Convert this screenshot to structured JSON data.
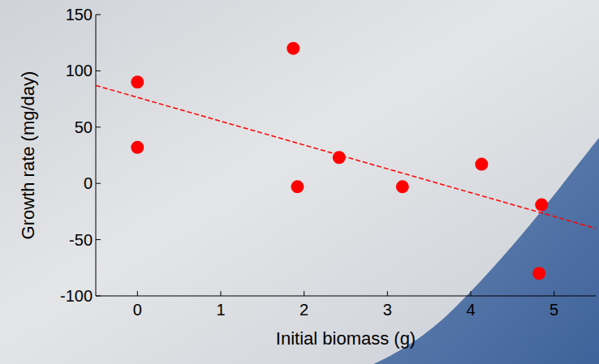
{
  "chart_data": {
    "type": "scatter",
    "x_label": "Initial biomass (g)",
    "y_label": "Growth rate (mg/day)",
    "xlim": [
      -0.5,
      5.5
    ],
    "ylim": [
      -100,
      150
    ],
    "xticks": [
      0,
      1,
      2,
      3,
      4,
      5
    ],
    "yticks": [
      -100,
      -50,
      0,
      50,
      100,
      150
    ],
    "grid": false,
    "series": [
      {
        "type": "scatter",
        "color": "#ff0000",
        "marker": "circle",
        "x": [
          0,
          0,
          1.87,
          1.92,
          2.42,
          3.18,
          4.13,
          4.85,
          4.82
        ],
        "values": [
          90,
          32,
          120,
          -3,
          23,
          -3,
          17,
          -19,
          -80
        ]
      },
      {
        "type": "line",
        "color": "#ff0000",
        "line_style": "dashed",
        "x": [
          -0.5,
          5.5
        ],
        "values": [
          87,
          -40
        ]
      }
    ]
  }
}
